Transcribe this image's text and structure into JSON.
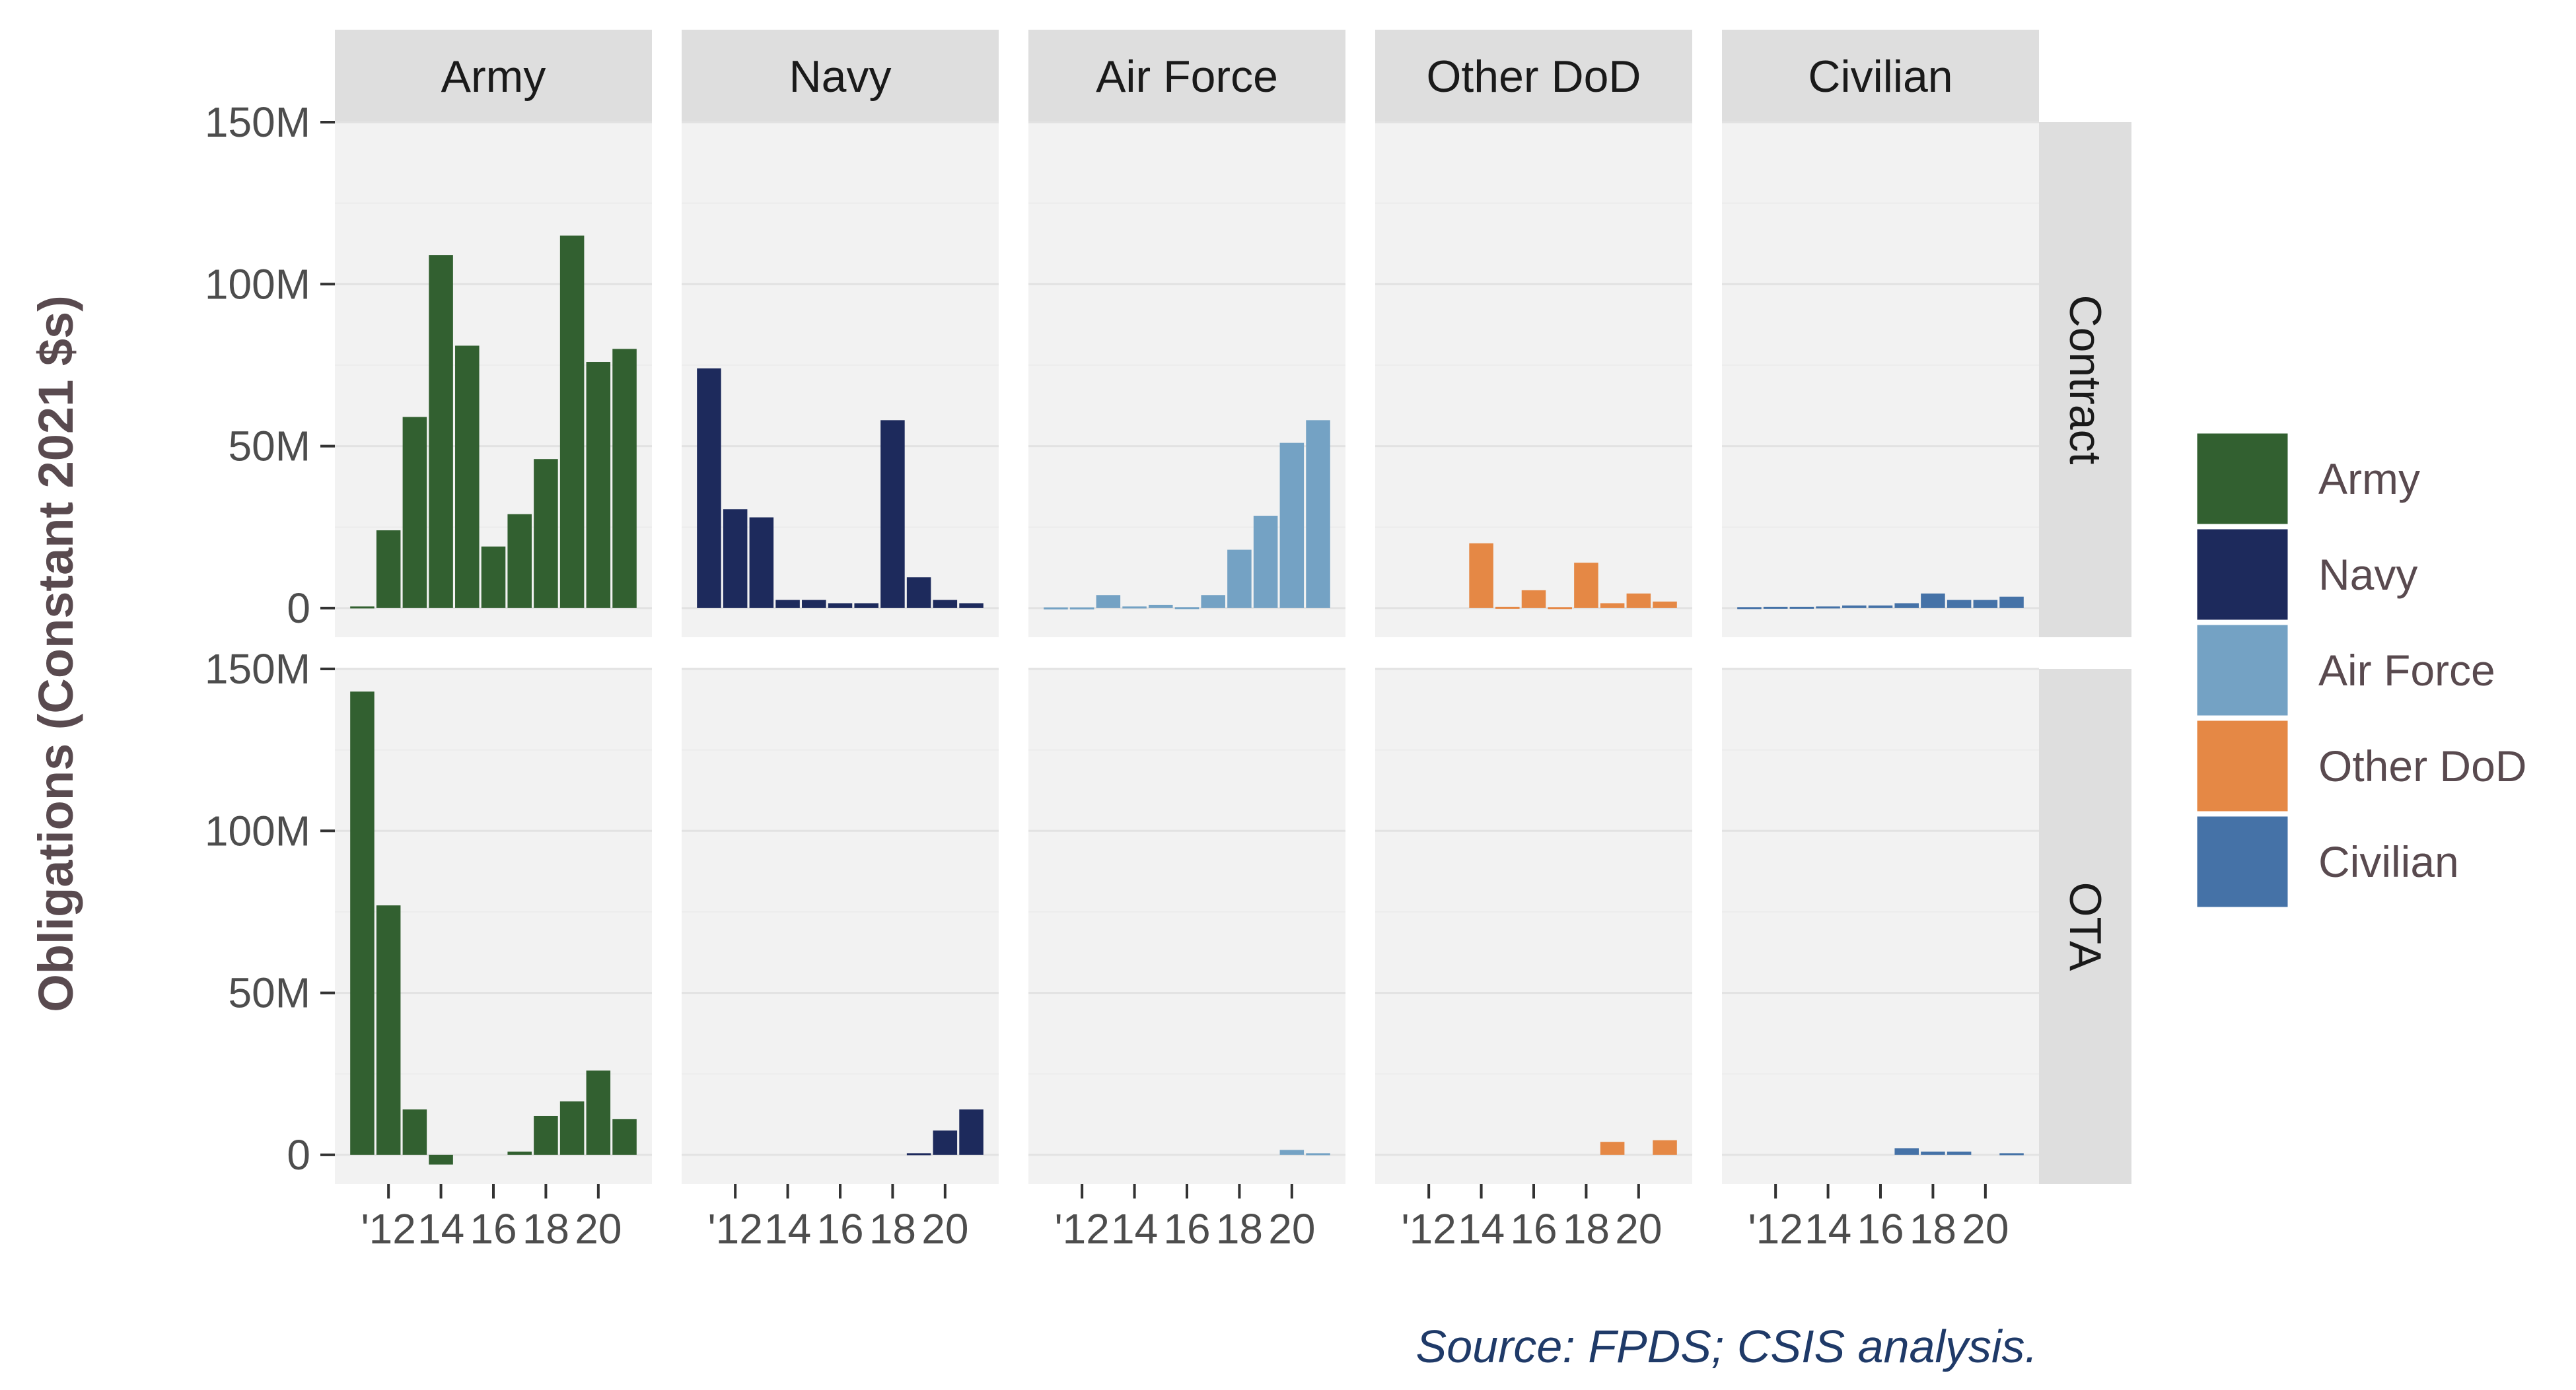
{
  "colors": {
    "Army": "#326030",
    "Navy": "#1d2a5c",
    "Air Force": "#74a2c4",
    "Other DoD": "#e58845",
    "Civilian": "#4572a7",
    "panel_bg": "#f2f2f2",
    "strip_bg": "#dedede",
    "gridline": "#e2e2e2",
    "text_axis": "#4d4d4d",
    "text_label": "#594a4f",
    "caption": "#1f3a68"
  },
  "chart_data": {
    "type": "bar",
    "facet_columns": [
      "Army",
      "Navy",
      "Air Force",
      "Other DoD",
      "Civilian"
    ],
    "facet_rows": [
      "Contract",
      "OTA"
    ],
    "x": [
      2011,
      2012,
      2013,
      2014,
      2015,
      2016,
      2017,
      2018,
      2019,
      2020,
      2021
    ],
    "x_tick_labels": [
      "'12",
      "14",
      "16",
      "18",
      "20"
    ],
    "x_tick_values": [
      2012,
      2014,
      2016,
      2018,
      2020
    ],
    "ylabel": "Obligations (Constant 2021 $s)",
    "ylim": [
      -9000000,
      150000000
    ],
    "y_ticks": [
      0,
      50000000,
      100000000,
      150000000
    ],
    "y_tick_labels": [
      "0",
      "50M",
      "100M",
      "150M"
    ],
    "grid": true,
    "legend_position": "right",
    "legend": [
      "Army",
      "Navy",
      "Air Force",
      "Other DoD",
      "Civilian"
    ],
    "caption": "Source: FPDS; CSIS analysis.",
    "panels": [
      {
        "row": "Contract",
        "col": "Army",
        "values": [
          500000,
          24000000,
          59000000,
          109000000,
          81000000,
          19000000,
          29000000,
          46000000,
          115000000,
          76000000,
          80000000
        ]
      },
      {
        "row": "Contract",
        "col": "Navy",
        "values": [
          74000000,
          30500000,
          28000000,
          2500000,
          2500000,
          1500000,
          1500000,
          58000000,
          9500000,
          2500000,
          1500000
        ]
      },
      {
        "row": "Contract",
        "col": "Air Force",
        "values": [
          200000,
          200000,
          4000000,
          500000,
          1000000,
          300000,
          4000000,
          18000000,
          28500000,
          51000000,
          58000000
        ]
      },
      {
        "row": "Contract",
        "col": "Other DoD",
        "values": [
          0,
          0,
          0,
          20000000,
          400000,
          5500000,
          300000,
          14000000,
          1500000,
          4500000,
          2000000
        ]
      },
      {
        "row": "Contract",
        "col": "Civilian",
        "values": [
          300000,
          400000,
          400000,
          500000,
          800000,
          800000,
          1500000,
          4500000,
          2500000,
          2500000,
          3500000
        ]
      },
      {
        "row": "OTA",
        "col": "Army",
        "values": [
          143000000,
          77000000,
          14000000,
          -3000000,
          0,
          0,
          1000000,
          12000000,
          16500000,
          26000000,
          11000000
        ]
      },
      {
        "row": "OTA",
        "col": "Navy",
        "values": [
          0,
          0,
          0,
          0,
          0,
          0,
          0,
          0,
          500000,
          7500000,
          14000000
        ]
      },
      {
        "row": "OTA",
        "col": "Air Force",
        "values": [
          0,
          0,
          0,
          0,
          0,
          0,
          0,
          0,
          0,
          1500000,
          500000
        ]
      },
      {
        "row": "OTA",
        "col": "Other DoD",
        "values": [
          0,
          0,
          0,
          0,
          0,
          0,
          0,
          0,
          4000000,
          0,
          4500000
        ]
      },
      {
        "row": "OTA",
        "col": "Civilian",
        "values": [
          0,
          0,
          0,
          0,
          0,
          0,
          2000000,
          1000000,
          1000000,
          0,
          500000
        ]
      }
    ]
  }
}
